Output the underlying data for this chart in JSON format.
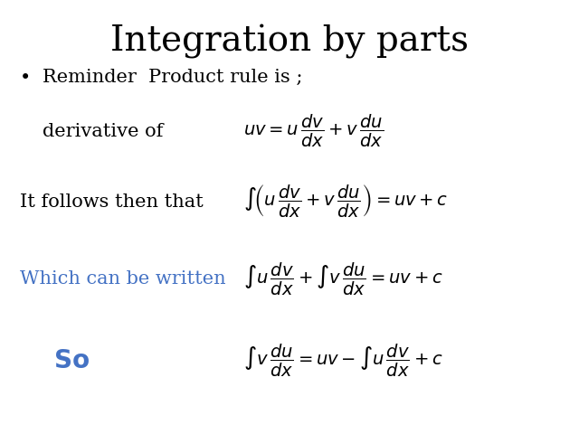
{
  "title": "Integration by parts",
  "title_fontsize": 28,
  "title_font": "serif",
  "bg_color": "#ffffff",
  "text_color": "#000000",
  "blue_color": "#4472C4",
  "bullet_text": "Reminder  Product rule is ;",
  "bullet_fontsize": 15,
  "label_deriv": "derivative of",
  "label_follows": "It follows then that",
  "label_which": "Which can be written",
  "label_so": "So",
  "eq1": "uv = u\\,\\dfrac{dv}{dx} + v\\,\\dfrac{du}{dx}",
  "eq2": "\\int\\!\\left( u\\,\\dfrac{dv}{dx} + v\\,\\dfrac{du}{dx} \\right) = uv + c",
  "eq3": "\\int u\\,\\dfrac{dv}{dx} + \\int v\\,\\dfrac{du}{dx} = uv + c",
  "eq4": "\\int v\\,\\dfrac{du}{dx} = uv - \\int u\\,\\dfrac{dv}{dx} + c"
}
